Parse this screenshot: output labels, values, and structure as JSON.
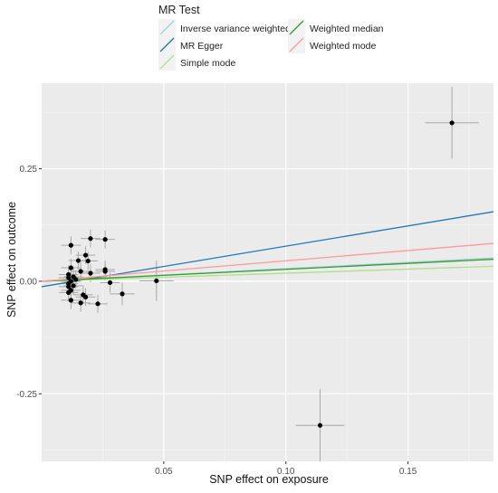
{
  "chart_data": {
    "type": "scatter",
    "title": "",
    "xlabel": "SNP effect on exposure",
    "ylabel": "SNP effect on outcome",
    "xlim": [
      0.0,
      0.185
    ],
    "ylim": [
      -0.4,
      0.44
    ],
    "x_ticks": [
      0.05,
      0.1,
      0.15
    ],
    "x_tick_labels": [
      "0.05",
      "0.10",
      "0.15"
    ],
    "y_ticks": [
      -0.25,
      0.0,
      0.25
    ],
    "y_tick_labels": [
      "-0.25",
      "0.00",
      "0.25"
    ],
    "grid": true,
    "panel_background": "#ebebeb",
    "legend": {
      "title": "MR Test",
      "placement": "top",
      "entries": [
        {
          "name": "Inverse variance weighted",
          "color": "#a6cee3"
        },
        {
          "name": "MR Egger",
          "color": "#1f78b4"
        },
        {
          "name": "Simple mode",
          "color": "#b2df8a"
        },
        {
          "name": "Weighted median",
          "color": "#33a02c"
        },
        {
          "name": "Weighted mode",
          "color": "#fb9a99"
        }
      ]
    },
    "lines": [
      {
        "name": "Inverse variance weighted",
        "color": "#a6cee3",
        "intercept": 0.0,
        "slope": 0.28
      },
      {
        "name": "MR Egger",
        "color": "#1f78b4",
        "intercept": -0.012,
        "slope": 0.9
      },
      {
        "name": "Simple mode",
        "color": "#b2df8a",
        "intercept": 0.0,
        "slope": 0.18
      },
      {
        "name": "Weighted median",
        "color": "#33a02c",
        "intercept": 0.0,
        "slope": 0.265
      },
      {
        "name": "Weighted mode",
        "color": "#fb9a99",
        "intercept": 0.0,
        "slope": 0.455
      }
    ],
    "points": [
      {
        "x": 0.168,
        "y": 0.352,
        "se_x": 0.011,
        "se_y": 0.08
      },
      {
        "x": 0.114,
        "y": -0.32,
        "se_x": 0.01,
        "se_y": 0.08
      },
      {
        "x": 0.047,
        "y": 0.001,
        "se_x": 0.007,
        "se_y": 0.045
      },
      {
        "x": 0.033,
        "y": -0.028,
        "se_x": 0.005,
        "se_y": 0.025
      },
      {
        "x": 0.028,
        "y": -0.003,
        "se_x": 0.004,
        "se_y": 0.022
      },
      {
        "x": 0.026,
        "y": 0.093,
        "se_x": 0.004,
        "se_y": 0.02
      },
      {
        "x": 0.026,
        "y": 0.026,
        "se_x": 0.004,
        "se_y": 0.02
      },
      {
        "x": 0.026,
        "y": 0.022,
        "se_x": 0.004,
        "se_y": 0.02
      },
      {
        "x": 0.023,
        "y": -0.05,
        "se_x": 0.004,
        "se_y": 0.02
      },
      {
        "x": 0.02,
        "y": 0.095,
        "se_x": 0.004,
        "se_y": 0.02
      },
      {
        "x": 0.02,
        "y": 0.018,
        "se_x": 0.004,
        "se_y": 0.02
      },
      {
        "x": 0.019,
        "y": 0.045,
        "se_x": 0.004,
        "se_y": 0.02
      },
      {
        "x": 0.018,
        "y": 0.058,
        "se_x": 0.004,
        "se_y": 0.02
      },
      {
        "x": 0.018,
        "y": -0.035,
        "se_x": 0.004,
        "se_y": 0.02
      },
      {
        "x": 0.017,
        "y": -0.03,
        "se_x": 0.004,
        "se_y": 0.02
      },
      {
        "x": 0.016,
        "y": -0.048,
        "se_x": 0.004,
        "se_y": 0.02
      },
      {
        "x": 0.016,
        "y": 0.022,
        "se_x": 0.004,
        "se_y": 0.02
      },
      {
        "x": 0.015,
        "y": 0.046,
        "se_x": 0.004,
        "se_y": 0.02
      },
      {
        "x": 0.014,
        "y": 0.004,
        "se_x": 0.004,
        "se_y": 0.02
      },
      {
        "x": 0.013,
        "y": -0.01,
        "se_x": 0.004,
        "se_y": 0.02
      },
      {
        "x": 0.013,
        "y": 0.01,
        "se_x": 0.004,
        "se_y": 0.02
      },
      {
        "x": 0.012,
        "y": -0.042,
        "se_x": 0.004,
        "se_y": 0.02
      },
      {
        "x": 0.012,
        "y": 0.08,
        "se_x": 0.004,
        "se_y": 0.02
      },
      {
        "x": 0.012,
        "y": 0.03,
        "se_x": 0.004,
        "se_y": 0.02
      },
      {
        "x": 0.012,
        "y": 0.0,
        "se_x": 0.004,
        "se_y": 0.02
      },
      {
        "x": 0.012,
        "y": -0.02,
        "se_x": 0.004,
        "se_y": 0.02
      },
      {
        "x": 0.011,
        "y": -0.005,
        "se_x": 0.004,
        "se_y": 0.02
      },
      {
        "x": 0.011,
        "y": -0.025,
        "se_x": 0.004,
        "se_y": 0.02
      },
      {
        "x": 0.011,
        "y": 0.015,
        "se_x": 0.004,
        "se_y": 0.02
      },
      {
        "x": 0.011,
        "y": -0.012,
        "se_x": 0.004,
        "se_y": 0.02
      },
      {
        "x": 0.011,
        "y": 0.008,
        "se_x": 0.004,
        "se_y": 0.02
      }
    ]
  }
}
